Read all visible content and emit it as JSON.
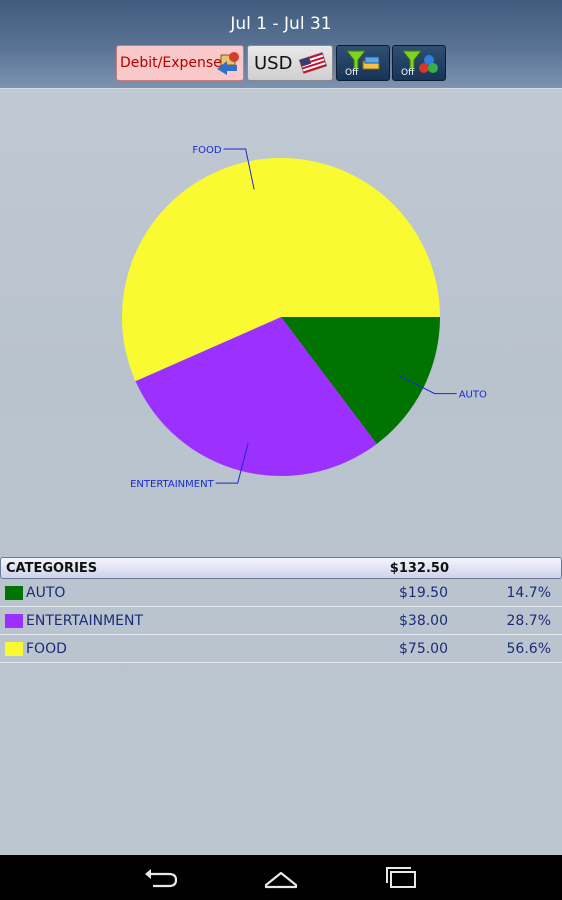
{
  "header": {
    "date_range": "Jul 1 - Jul 31",
    "debit_label": "Debit/Expense",
    "currency_label": "USD",
    "filter1_state": "Off",
    "filter2_state": "Off"
  },
  "chart_data": {
    "type": "pie",
    "categories": [
      "AUTO",
      "ENTERTAINMENT",
      "FOOD"
    ],
    "values": [
      19.5,
      38.0,
      75.0
    ],
    "colors": [
      "#007300",
      "#9b30ff",
      "#fafa32"
    ],
    "title": ""
  },
  "table": {
    "header_label": "CATEGORIES",
    "total": "$132.50",
    "rows": [
      {
        "name": "AUTO",
        "amount": "$19.50",
        "percent": "14.7%",
        "color": "#007300"
      },
      {
        "name": "ENTERTAINMENT",
        "amount": "$38.00",
        "percent": "28.7%",
        "color": "#9b30ff"
      },
      {
        "name": "FOOD",
        "amount": "$75.00",
        "percent": "56.6%",
        "color": "#fafa32"
      }
    ]
  },
  "navbar": {
    "icons": [
      "back-icon",
      "home-icon",
      "recent-apps-icon"
    ]
  }
}
